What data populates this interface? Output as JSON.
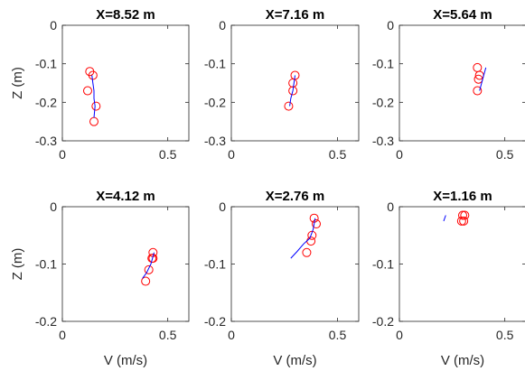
{
  "chart_data": [
    {
      "type": "scatter",
      "title": "X=8.52 m",
      "xlabel": "",
      "ylabel": "Z (m)",
      "xlim": [
        0,
        0.6
      ],
      "ylim": [
        -0.3,
        0
      ],
      "xticks": [
        "0",
        "0.5"
      ],
      "yticks": [
        "0",
        "-0.1",
        "-0.2",
        "-0.3"
      ],
      "grid": false,
      "series": [
        {
          "kind": "points",
          "color": "#ff0000",
          "points": [
            [
              0.13,
              -0.12
            ],
            [
              0.145,
              -0.13
            ],
            [
              0.12,
              -0.17
            ],
            [
              0.16,
              -0.21
            ],
            [
              0.15,
              -0.25
            ]
          ]
        },
        {
          "kind": "line",
          "color": "#0000ff",
          "points": [
            [
              0.14,
              -0.13
            ],
            [
              0.145,
              -0.15
            ],
            [
              0.15,
              -0.17
            ],
            [
              0.15,
              -0.19
            ],
            [
              0.155,
              -0.21
            ],
            [
              0.15,
              -0.24
            ]
          ]
        }
      ]
    },
    {
      "type": "scatter",
      "title": "X=7.16 m",
      "xlabel": "",
      "ylabel": "",
      "xlim": [
        0,
        0.6
      ],
      "ylim": [
        -0.3,
        0
      ],
      "xticks": [
        "0",
        "0.5"
      ],
      "yticks": [
        "0",
        "-0.1",
        "-0.2",
        "-0.3"
      ],
      "grid": false,
      "series": [
        {
          "kind": "points",
          "color": "#ff0000",
          "points": [
            [
              0.3,
              -0.13
            ],
            [
              0.29,
              -0.15
            ],
            [
              0.29,
              -0.17
            ],
            [
              0.27,
              -0.21
            ]
          ]
        },
        {
          "kind": "line",
          "color": "#0000ff",
          "points": [
            [
              0.3,
              -0.13
            ],
            [
              0.295,
              -0.15
            ],
            [
              0.29,
              -0.17
            ],
            [
              0.28,
              -0.19
            ],
            [
              0.275,
              -0.21
            ]
          ]
        }
      ]
    },
    {
      "type": "scatter",
      "title": "X=5.64 m",
      "xlabel": "",
      "ylabel": "",
      "xlim": [
        0,
        0.6
      ],
      "ylim": [
        -0.3,
        0
      ],
      "xticks": [
        "0",
        "0.5"
      ],
      "yticks": [
        "0",
        "-0.1",
        "-0.2",
        "-0.3"
      ],
      "grid": false,
      "series": [
        {
          "kind": "points",
          "color": "#ff0000",
          "points": [
            [
              0.37,
              -0.11
            ],
            [
              0.38,
              -0.13
            ],
            [
              0.375,
              -0.14
            ],
            [
              0.37,
              -0.17
            ]
          ]
        },
        {
          "kind": "line",
          "color": "#0000ff",
          "points": [
            [
              0.41,
              -0.11
            ],
            [
              0.4,
              -0.13
            ],
            [
              0.39,
              -0.15
            ],
            [
              0.38,
              -0.17
            ]
          ]
        }
      ]
    },
    {
      "type": "scatter",
      "title": "X=4.12 m",
      "xlabel": "V (m/s)",
      "ylabel": "Z (m)",
      "xlim": [
        0,
        0.6
      ],
      "ylim": [
        -0.2,
        0
      ],
      "xticks": [
        "0",
        "0.5"
      ],
      "yticks": [
        "0",
        "-0.1",
        "-0.2"
      ],
      "grid": false,
      "series": [
        {
          "kind": "points",
          "color": "#ff0000",
          "points": [
            [
              0.43,
              -0.08
            ],
            [
              0.43,
              -0.09
            ],
            [
              0.425,
              -0.09
            ],
            [
              0.41,
              -0.11
            ],
            [
              0.395,
              -0.13
            ]
          ]
        },
        {
          "kind": "line",
          "color": "#0000ff",
          "points": [
            [
              0.435,
              -0.08
            ],
            [
              0.42,
              -0.1
            ],
            [
              0.4,
              -0.115
            ],
            [
              0.38,
              -0.125
            ]
          ]
        }
      ]
    },
    {
      "type": "scatter",
      "title": "X=2.76 m",
      "xlabel": "V (m/s)",
      "ylabel": "",
      "xlim": [
        0,
        0.6
      ],
      "ylim": [
        -0.2,
        0
      ],
      "xticks": [
        "0",
        "0.5"
      ],
      "yticks": [
        "0",
        "-0.1",
        "-0.2"
      ],
      "grid": false,
      "series": [
        {
          "kind": "points",
          "color": "#ff0000",
          "points": [
            [
              0.39,
              -0.02
            ],
            [
              0.4,
              -0.03
            ],
            [
              0.38,
              -0.05
            ],
            [
              0.375,
              -0.06
            ],
            [
              0.355,
              -0.08
            ]
          ]
        },
        {
          "kind": "line",
          "color": "#0000ff",
          "points": [
            [
              0.395,
              -0.02
            ],
            [
              0.385,
              -0.04
            ],
            [
              0.37,
              -0.055
            ],
            [
              0.34,
              -0.065
            ],
            [
              0.31,
              -0.078
            ],
            [
              0.28,
              -0.09
            ]
          ]
        }
      ]
    },
    {
      "type": "scatter",
      "title": "X=1.16 m",
      "xlabel": "V (m/s)",
      "ylabel": "",
      "xlim": [
        0,
        0.6
      ],
      "ylim": [
        -0.2,
        0
      ],
      "xticks": [
        "0",
        "0.5"
      ],
      "yticks": [
        "0",
        "-0.1",
        "-0.2"
      ],
      "grid": false,
      "series": [
        {
          "kind": "points",
          "color": "#ff0000",
          "points": [
            [
              0.3,
              -0.015
            ],
            [
              0.31,
              -0.015
            ],
            [
              0.295,
              -0.025
            ],
            [
              0.305,
              -0.025
            ]
          ]
        },
        {
          "kind": "line",
          "color": "#0000ff",
          "points": [
            [
              0.22,
              -0.015
            ],
            [
              0.21,
              -0.025
            ]
          ]
        }
      ]
    }
  ]
}
